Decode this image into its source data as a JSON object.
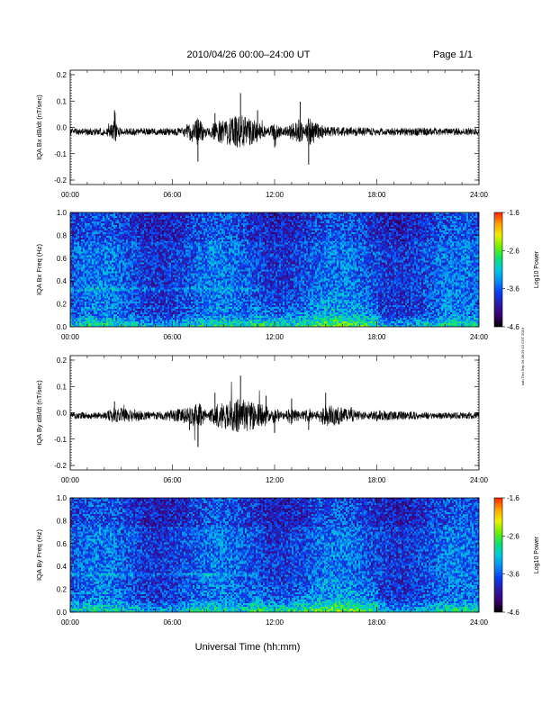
{
  "header": {
    "title": "2010/04/26  00:00–24:00 UT",
    "page": "Page 1/1"
  },
  "footer": {
    "xlabel": "Universal Time (hh:mm)",
    "stamp": "eah Thu Sep 26 08:29:13 CST 2019"
  },
  "colors": {
    "trace": "#000000",
    "colormap": [
      "#000000",
      "#3a0070",
      "#2a1aa8",
      "#0a3cf0",
      "#0a8cf0",
      "#00c8e0",
      "#10e070",
      "#70f000",
      "#f0f000",
      "#ffa000",
      "#ff2000"
    ]
  },
  "chart_data": [
    {
      "type": "line",
      "ylabel": "IQA Bx dB/dt (nT/sec)",
      "xticks": [
        "00:00",
        "06:00",
        "12:00",
        "18:00",
        "24:00"
      ],
      "xlim": [
        "00:00",
        "24:00"
      ],
      "ylim": [
        -0.2,
        0.2
      ],
      "yticks": [
        "0.2",
        "0.1",
        "0.0",
        "-0.1",
        "-0.2"
      ],
      "series": [
        {
          "x_hours": [
            0,
            2,
            2.6,
            3,
            5,
            6.5,
            7.5,
            8.5,
            10,
            11,
            12,
            13.5,
            14,
            15,
            18,
            21,
            24
          ],
          "values": [
            -0.015,
            -0.02,
            0.06,
            -0.02,
            -0.015,
            -0.02,
            -0.12,
            0.05,
            0.12,
            0.06,
            -0.07,
            0.09,
            -0.13,
            -0.03,
            -0.02,
            -0.02,
            -0.015
          ]
        }
      ]
    },
    {
      "type": "heatmap",
      "ylabel": "IQA Bx Freq (Hz)",
      "xticks": [
        "00:00",
        "06:00",
        "12:00",
        "18:00",
        "24:00"
      ],
      "ylim": [
        0.0,
        1.0
      ],
      "yticks": [
        "1.0",
        "0.8",
        "0.6",
        "0.4",
        "0.2",
        "0.0"
      ],
      "colorbar": {
        "label": "Log10 Power",
        "ticks": [
          "-1.6",
          "-2.6",
          "-3.6",
          "-4.6"
        ],
        "range": [
          -4.6,
          -1.6
        ]
      }
    },
    {
      "type": "line",
      "ylabel": "IQA By dB/dt (nT/sec)",
      "xticks": [
        "00:00",
        "06:00",
        "12:00",
        "18:00",
        "24:00"
      ],
      "xlim": [
        "00:00",
        "24:00"
      ],
      "ylim": [
        -0.2,
        0.2
      ],
      "yticks": [
        "0.2",
        "0.1",
        "0.0",
        "-0.1",
        "-0.2"
      ],
      "series": [
        {
          "x_hours": [
            0,
            2,
            2.6,
            5,
            7,
            7.5,
            8.5,
            10,
            11.5,
            12,
            13,
            14,
            15,
            16.5,
            18,
            21,
            24
          ],
          "values": [
            -0.01,
            -0.01,
            0.04,
            -0.01,
            -0.06,
            -0.12,
            0.07,
            0.13,
            0.06,
            -0.07,
            0.05,
            -0.06,
            0.07,
            0.02,
            -0.03,
            -0.01,
            -0.01
          ]
        }
      ]
    },
    {
      "type": "heatmap",
      "ylabel": "IQA By Freq (Hz)",
      "xticks": [
        "00:00",
        "06:00",
        "12:00",
        "18:00",
        "24:00"
      ],
      "ylim": [
        0.0,
        1.0
      ],
      "yticks": [
        "1.0",
        "0.8",
        "0.6",
        "0.4",
        "0.2",
        "0.0"
      ],
      "colorbar": {
        "label": "Log10 Power",
        "ticks": [
          "-1.6",
          "-2.6",
          "-3.6",
          "-4.6"
        ],
        "range": [
          -4.6,
          -1.6
        ]
      }
    }
  ]
}
